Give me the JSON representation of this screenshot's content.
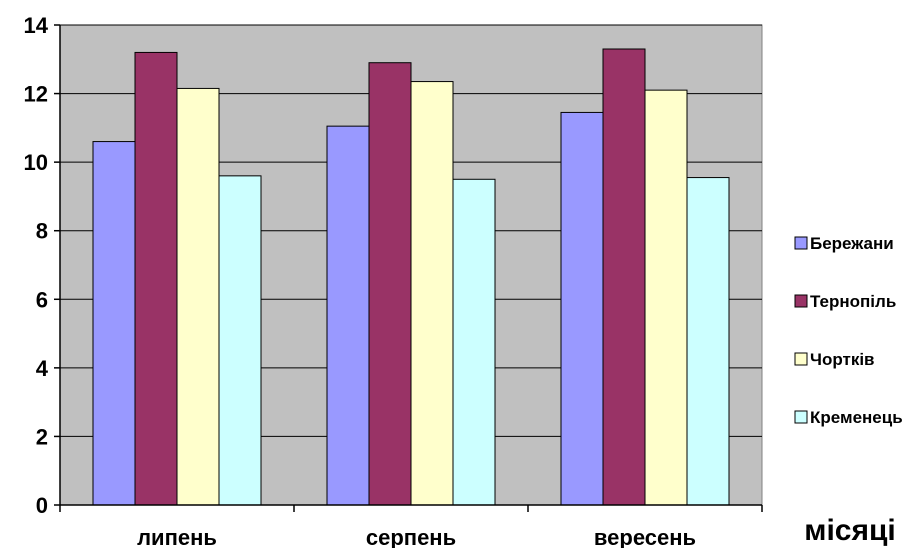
{
  "chart_data": {
    "type": "bar",
    "categories": [
      "липень",
      "серпень",
      "вересень"
    ],
    "series": [
      {
        "name": "Бережани",
        "color": "#9999ff",
        "values": [
          10.6,
          11.05,
          11.45
        ]
      },
      {
        "name": "Тернопіль",
        "color": "#993366",
        "values": [
          13.2,
          12.9,
          13.3
        ]
      },
      {
        "name": "Чортків",
        "color": "#ffffcc",
        "values": [
          12.15,
          12.35,
          12.1
        ]
      },
      {
        "name": "Кременець",
        "color": "#ccffff",
        "values": [
          9.6,
          9.5,
          9.55
        ]
      }
    ],
    "xlabel": "місяці",
    "ylabel": "",
    "ylim": [
      0,
      14
    ],
    "yticks": [
      "0",
      "2",
      "4",
      "6",
      "8",
      "10",
      "12",
      "14"
    ],
    "grid": true,
    "plot_background": "#c0c0c0",
    "legend_position": "right"
  }
}
